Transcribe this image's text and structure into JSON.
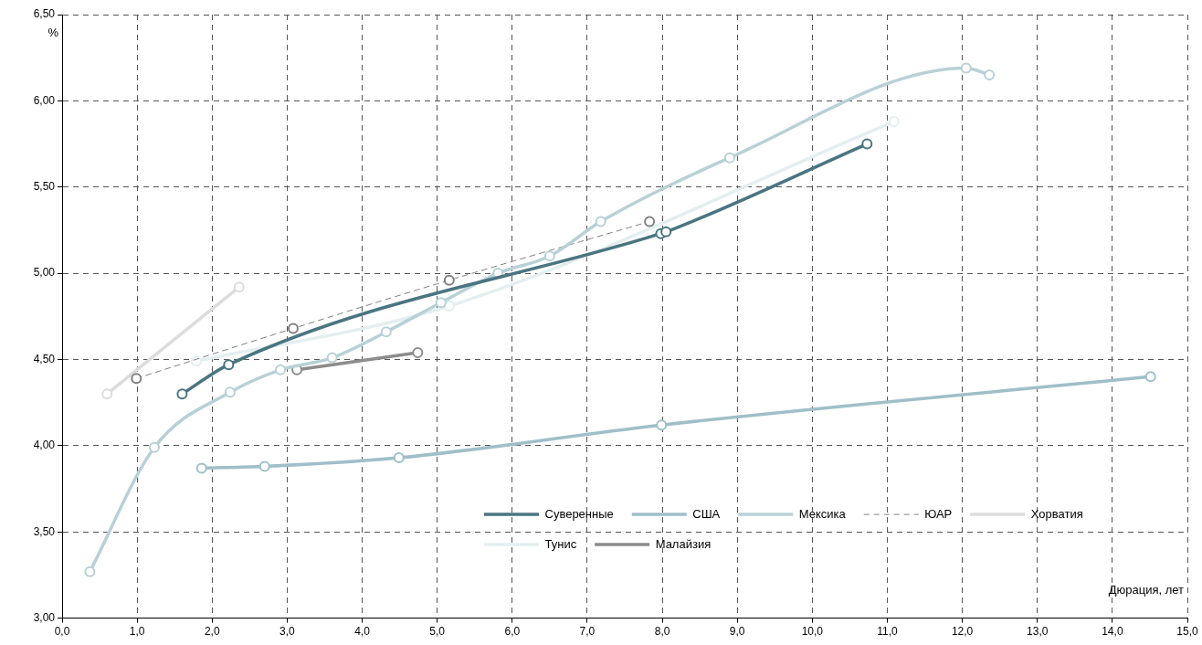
{
  "chart_data": {
    "type": "line",
    "xlabel": "Дюрация, лет",
    "ylabel": "%",
    "xlim": [
      0,
      15
    ],
    "ylim": [
      3,
      6.5
    ],
    "xticks": [
      {
        "value": 0,
        "label": "0,0"
      },
      {
        "value": 1,
        "label": "1,0"
      },
      {
        "value": 2,
        "label": "2,0"
      },
      {
        "value": 3,
        "label": "3,0"
      },
      {
        "value": 4,
        "label": "4,0"
      },
      {
        "value": 5,
        "label": "5,0"
      },
      {
        "value": 6,
        "label": "6,0"
      },
      {
        "value": 7,
        "label": "7,0"
      },
      {
        "value": 8,
        "label": "8,0"
      },
      {
        "value": 9,
        "label": "9,0"
      },
      {
        "value": 10,
        "label": "10,0"
      },
      {
        "value": 11,
        "label": "11,0"
      },
      {
        "value": 12,
        "label": "12,0"
      },
      {
        "value": 13,
        "label": "13,0"
      },
      {
        "value": 14,
        "label": "14,0"
      },
      {
        "value": 15,
        "label": "15,0"
      }
    ],
    "yticks": [
      {
        "value": 3,
        "label": "3,00"
      },
      {
        "value": 3.5,
        "label": "3,50"
      },
      {
        "value": 4,
        "label": "4,00"
      },
      {
        "value": 4.5,
        "label": "4,50"
      },
      {
        "value": 5,
        "label": "5,00"
      },
      {
        "value": 5.5,
        "label": "5,50"
      },
      {
        "value": 6,
        "label": "6,00"
      },
      {
        "value": 6.5,
        "label": "6,50"
      }
    ],
    "grid": true,
    "legend": "bottom right",
    "marker": "circle",
    "line_style": "solid",
    "series": [
      {
        "name": "Суверенные",
        "color": "#4a7580",
        "x": [
          1.6,
          2.22,
          7.98,
          8.05,
          10.73
        ],
        "values": [
          4.3,
          4.47,
          5.23,
          5.24,
          5.75
        ]
      },
      {
        "name": "США",
        "color": "#9fbfc8",
        "x": [
          1.86,
          2.7,
          4.49,
          7.99,
          14.51
        ],
        "values": [
          3.87,
          3.88,
          3.93,
          4.12,
          4.4
        ]
      },
      {
        "name": "Мексика",
        "color": "#b8d0d6",
        "x": [
          0.37,
          1.23,
          2.24,
          2.91,
          3.6,
          4.32,
          5.05,
          5.81,
          6.5,
          7.18,
          8.9,
          12.05,
          12.36
        ],
        "values": [
          3.27,
          3.99,
          4.31,
          4.44,
          4.51,
          4.66,
          4.83,
          5.0,
          5.1,
          5.3,
          5.67,
          6.19,
          6.15
        ]
      },
      {
        "name": "ЮАР",
        "color": "#808080",
        "line_style": "dashed",
        "x": [
          0.99,
          3.08,
          5.16,
          7.83
        ],
        "values": [
          4.39,
          4.68,
          4.96,
          5.3
        ]
      },
      {
        "name": "Хорватия",
        "color": "#dcdcdc",
        "x": [
          0.6,
          2.36
        ],
        "values": [
          4.3,
          4.92
        ]
      },
      {
        "name": "Тунис",
        "color": "#e4eef1",
        "x": [
          1.79,
          5.16,
          11.09
        ],
        "values": [
          4.49,
          4.81,
          5.88
        ]
      },
      {
        "name": "Малайзия",
        "color": "#8c8c8c",
        "x": [
          3.13,
          4.74
        ],
        "values": [
          4.44,
          4.54
        ]
      }
    ]
  }
}
